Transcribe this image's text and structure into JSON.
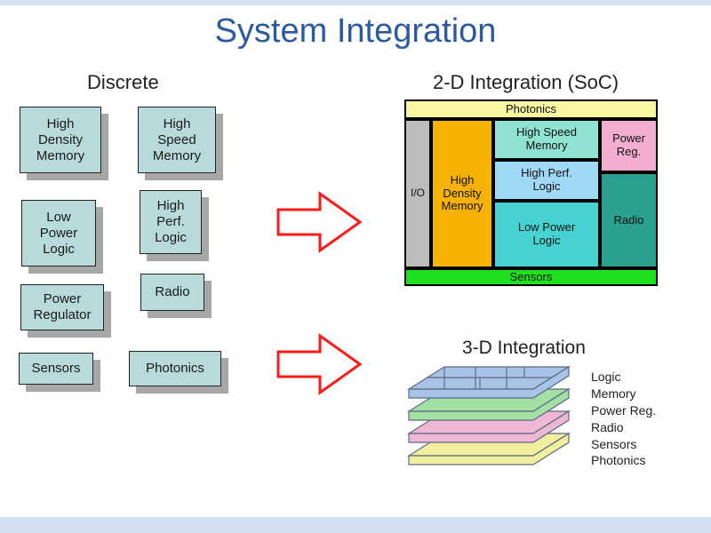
{
  "title": "System Integration",
  "title_color": "#2c5a9e",
  "accent_bar_color": "#d4e1f3",
  "section_labels": {
    "discrete": "Discrete",
    "soc": "2-D Integration (SoC)",
    "threed": "3-D Integration"
  },
  "discrete": {
    "box_fill": "#b8dada",
    "shadow_fill": "#a7a7a7",
    "boxes": [
      {
        "label": "High\nDensity\nMemory"
      },
      {
        "label": "High\nSpeed\nMemory"
      },
      {
        "label": "Low\nPower\nLogic"
      },
      {
        "label": "High\nPerf.\nLogic"
      },
      {
        "label": "Power\nRegulator"
      },
      {
        "label": "Radio"
      },
      {
        "label": "Sensors"
      },
      {
        "label": "Photonics"
      }
    ]
  },
  "arrow": {
    "stroke": "#ff1a1a",
    "fill": "#ffffff",
    "stroke_width": 3
  },
  "soc": {
    "photonics": {
      "label": "Photonics",
      "fill": "#f8f8a3"
    },
    "sensors": {
      "label": "Sensors",
      "fill": "#1fe01f"
    },
    "io": {
      "label": "I/O",
      "fill": "#bdbdbd"
    },
    "hdm": {
      "label": "High\nDensity\nMemory",
      "fill": "#f5b200"
    },
    "hsm": {
      "label": "High Speed\nMemory",
      "fill": "#8fe3d0"
    },
    "hpl": {
      "label": "High Perf.\nLogic",
      "fill": "#9fd9f5"
    },
    "lpl": {
      "label": "Low Power\nLogic",
      "fill": "#47d2d2"
    },
    "pwr": {
      "label": "Power\nReg.",
      "fill": "#f3add1"
    },
    "radio": {
      "label": "Radio",
      "fill": "#2aa190"
    }
  },
  "stack": {
    "layers": [
      {
        "fill": "#a7c3e6"
      },
      {
        "fill": "#a3e0a3"
      },
      {
        "fill": "#f0b7d4"
      },
      {
        "fill": "#efef9d"
      }
    ],
    "labels": [
      "Logic",
      "Memory",
      "Power Reg.",
      "Radio",
      "Sensors",
      "Photonics"
    ],
    "stroke": "#5d6a85"
  }
}
